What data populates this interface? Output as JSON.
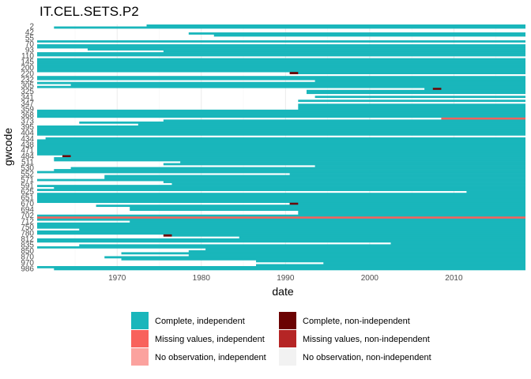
{
  "chart_data": {
    "type": "heatmap",
    "title": "IT.CEL.SETS.P2",
    "xlabel": "date",
    "ylabel": "gwcode",
    "xlim": [
      1960.5,
      2018.5
    ],
    "x_ticks": [
      1970,
      1980,
      1990,
      2000,
      2010
    ],
    "y_tick_labels": [
      "2",
      "42",
      "55",
      "70",
      "93",
      "110",
      "145",
      "200",
      "220",
      "232",
      "305",
      "325",
      "341",
      "347",
      "359",
      "368",
      "373",
      "395",
      "404",
      "434",
      "438",
      "471",
      "484",
      "511",
      "530",
      "552",
      "571",
      "591",
      "625",
      "651",
      "670",
      "694",
      "702",
      "712",
      "750",
      "780",
      "812",
      "835",
      "850",
      "870",
      "970",
      "986"
    ],
    "grid": true,
    "legend": {
      "position": "bottom",
      "items": [
        {
          "label": "Complete, independent",
          "color": "#19b6bb"
        },
        {
          "label": "Missing values, independent",
          "color": "#f8625c"
        },
        {
          "label": "No observation, independent",
          "color": "#fba29e"
        },
        {
          "label": "Complete, non-independent",
          "color": "#6b0202"
        },
        {
          "label": "Missing values, non-independent",
          "color": "#b52525"
        },
        {
          "label": "No observation, non-independent",
          "color": "#f2f2f2"
        }
      ]
    },
    "row_count": 124,
    "default_start": 1960.5,
    "white_rows": [
      2,
      3,
      6,
      7,
      9,
      16,
      35,
      37,
      39,
      56
    ],
    "rows": [
      {
        "row": 0,
        "start": 1973.5
      },
      {
        "row": 1,
        "start": 1962.5
      },
      {
        "row": 2,
        "start": 1966.5
      },
      {
        "row": 3,
        "start": 1974.5
      },
      {
        "row": 4,
        "start": 1978.5
      },
      {
        "row": 5,
        "start": 1981.5
      },
      {
        "row": 6,
        "start": 1983.5
      },
      {
        "row": 7,
        "start": 1981.5
      },
      {
        "row": 12,
        "start": 1966.5
      },
      {
        "row": 13,
        "start": 1975.5
      },
      {
        "row": 24,
        "start": 1990.5,
        "nonindep_from": 1990.5,
        "nonindep_to": 1991.5
      },
      {
        "row": 25,
        "start": 2018.5
      },
      {
        "row": 28,
        "start": 1993.5
      },
      {
        "row": 30,
        "start": 1964.5
      },
      {
        "row": 32,
        "start": 2006.5,
        "nonindep_from": 2007.5,
        "nonindep_to": 2008.5
      },
      {
        "row": 33,
        "start": 1992.5
      },
      {
        "row": 34,
        "start": 1992.5
      },
      {
        "row": 36,
        "start": 1993.5
      },
      {
        "row": 38,
        "start": 1991.5
      },
      {
        "row": 40,
        "start": 1991.5
      },
      {
        "row": 41,
        "start": 1991.5
      },
      {
        "row": 42,
        "start": 1991.5
      },
      {
        "row": 47,
        "start": 2008.5,
        "missing_from": 2008.5,
        "missing_to": 2018.5
      },
      {
        "row": 48,
        "start": 1975.5
      },
      {
        "row": 49,
        "start": 1965.5
      },
      {
        "row": 50,
        "start": 1972.5
      },
      {
        "row": 57,
        "start": 1961.5
      },
      {
        "row": 66,
        "start": 1964.5,
        "nonindep_from": 1963.5,
        "nonindep_to": 1964.5
      },
      {
        "row": 67,
        "start": 1962.5
      },
      {
        "row": 68,
        "start": 1962.5
      },
      {
        "row": 69,
        "start": 1977.5
      },
      {
        "row": 70,
        "start": 1975.5
      },
      {
        "row": 71,
        "start": 1993.5
      },
      {
        "row": 72,
        "start": 1964.5
      },
      {
        "row": 73,
        "start": 1962.5
      },
      {
        "row": 75,
        "start": 1990.5
      },
      {
        "row": 76,
        "start": 1968.5
      },
      {
        "row": 77,
        "start": 1968.5
      },
      {
        "row": 79,
        "start": 1975.5
      },
      {
        "row": 80,
        "start": 1976.5
      },
      {
        "row": 82,
        "start": 1962.5
      },
      {
        "row": 84,
        "start": 2011.5
      },
      {
        "row": 90,
        "start": 1990.5,
        "nonindep_from": 1990.5,
        "nonindep_to": 1991.5
      },
      {
        "row": 91,
        "start": 1967.5
      },
      {
        "row": 92,
        "start": 1971.5
      },
      {
        "row": 93,
        "start": 1971.5
      },
      {
        "row": 94,
        "start": 1991.5
      },
      {
        "row": 95,
        "start": 1991.5
      },
      {
        "row": 97,
        "start": 2018.5,
        "missing_from": 1960.5,
        "missing_to": 2018.5
      },
      {
        "row": 99,
        "start": 1971.5
      },
      {
        "row": 103,
        "start": 1965.5
      },
      {
        "row": 106,
        "start": 1976.5,
        "nonindep_from": 1975.5,
        "nonindep_to": 1976.5
      },
      {
        "row": 107,
        "start": 1984.5
      },
      {
        "row": 110,
        "start": 2002.5
      },
      {
        "row": 111,
        "start": 1965.5
      },
      {
        "row": 113,
        "start": 1980.5
      },
      {
        "row": 114,
        "start": 1978.5
      },
      {
        "row": 115,
        "start": 1970.5
      },
      {
        "row": 116,
        "start": 1978.5
      },
      {
        "row": 117,
        "start": 1968.5
      },
      {
        "row": 118,
        "start": 1970.5
      },
      {
        "row": 119,
        "start": 1986.5
      },
      {
        "row": 120,
        "start": 1994.5
      },
      {
        "row": 121,
        "start": 1986.5
      },
      {
        "row": 123,
        "start": 1962.5
      }
    ]
  }
}
